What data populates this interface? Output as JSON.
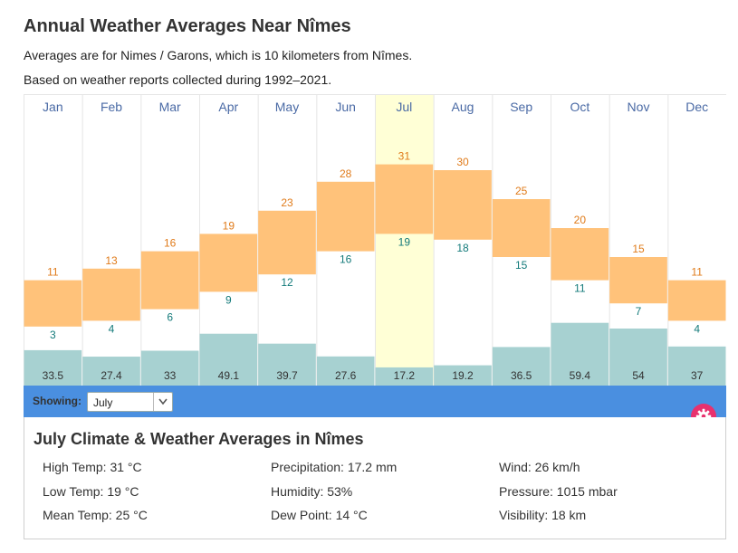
{
  "header": {
    "title": "Annual Weather Averages Near Nîmes",
    "subtitle1": "Averages are for Nimes / Garons, which is 10 kilometers from Nîmes.",
    "subtitle2": "Based on weather reports collected during 1992–2021."
  },
  "colors": {
    "temp_band": "#ffc27a",
    "high_label": "#e07b1a",
    "low_label": "#137a7a",
    "precip_bar": "#a7d1d1",
    "month_label": "#4a6aa5",
    "highlight": "#ffffd6",
    "showing_bar": "#4a8fe0",
    "gear_button": "#e8316e"
  },
  "chart_data": {
    "type": "bar",
    "categories": [
      "Jan",
      "Feb",
      "Mar",
      "Apr",
      "May",
      "Jun",
      "Jul",
      "Aug",
      "Sep",
      "Oct",
      "Nov",
      "Dec"
    ],
    "highlighted_category": "Jul",
    "series": [
      {
        "values": [
          11,
          13,
          16,
          19,
          23,
          28,
          31,
          30,
          25,
          20,
          15,
          11
        ]
      },
      {
        "values": [
          3,
          4,
          6,
          9,
          12,
          16,
          19,
          18,
          15,
          11,
          7,
          4
        ]
      },
      {
        "values": [
          33.5,
          27.4,
          33,
          49.1,
          39.7,
          27.6,
          17.2,
          19.2,
          36.5,
          59.4,
          54,
          37
        ]
      }
    ],
    "temp_range": [
      -10,
      40
    ],
    "precip_range": [
      0,
      120
    ],
    "grid": false
  },
  "controls": {
    "showing_label": "Showing:",
    "selected_month": "July"
  },
  "panel": {
    "title": "July Climate & Weather Averages in Nîmes",
    "stats": [
      [
        "High Temp: 31 °C",
        "Precipitation: 17.2 mm",
        "Wind: 26 km/h"
      ],
      [
        "Low Temp: 19 °C",
        "Humidity: 53%",
        "Pressure: 1015 mbar"
      ],
      [
        "Mean Temp: 25 °C",
        "Dew Point: 14 °C",
        "Visibility: 18 km"
      ]
    ]
  }
}
